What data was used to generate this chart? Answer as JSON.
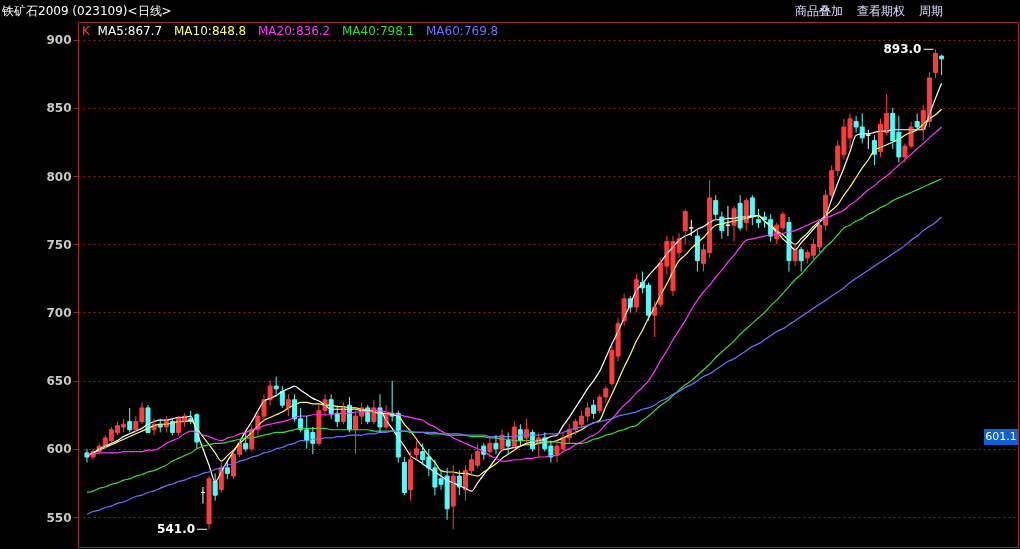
{
  "chart_data": {
    "type": "candlestick",
    "title": "铁矿石2009 (023109)<日线>",
    "categories": [
      null,
      null,
      null,
      null,
      null,
      null,
      null,
      null,
      null,
      null,
      null,
      null,
      null,
      null,
      null,
      null,
      null,
      null,
      null,
      null,
      null,
      null,
      null,
      null,
      null,
      null,
      null,
      null,
      null,
      null,
      null,
      null,
      null,
      null,
      null,
      null,
      null,
      null,
      null,
      null,
      null,
      null,
      null,
      null,
      null,
      null,
      null,
      null,
      null,
      null,
      null,
      null,
      null,
      null,
      null,
      null,
      null,
      null,
      null,
      null,
      null,
      null,
      null,
      null,
      null,
      null,
      null,
      null,
      null,
      null,
      null,
      null,
      null,
      null,
      null,
      null,
      null,
      null,
      null,
      null,
      null,
      null,
      null,
      null,
      null,
      null,
      null,
      null,
      null,
      null,
      null,
      null,
      null,
      null,
      null,
      null,
      null,
      null,
      null,
      null,
      null,
      null,
      null,
      null,
      null,
      null,
      null,
      null,
      null,
      null,
      null,
      null,
      null,
      null,
      null,
      null,
      null,
      null,
      null,
      null,
      null,
      null,
      null,
      null,
      null,
      null,
      null,
      null,
      null,
      null,
      null,
      null,
      null,
      null,
      null,
      null,
      null,
      null,
      null,
      null,
      null
    ],
    "ylim": [
      528,
      913
    ],
    "yticks": [
      550,
      600,
      650,
      700,
      750,
      800,
      850,
      900
    ],
    "grid": "y",
    "legend": "top left",
    "series": [
      {
        "name": "MA5:867.7",
        "type": "line",
        "color": "#ffffff",
        "values": [
          595,
          597,
          600,
          602,
          604,
          606,
          609,
          611,
          613,
          615,
          618,
          620,
          621,
          621,
          622,
          623,
          623,
          624,
          612,
          600,
          588,
          576,
          583,
          591,
          598,
          605,
          613,
          620,
          628,
          635,
          637,
          639,
          642,
          644,
          646,
          643,
          640,
          637,
          635,
          632,
          629,
          629,
          629,
          629,
          629,
          628,
          628,
          628,
          628,
          621,
          615,
          608,
          602,
          595,
          592,
          589,
          586,
          583,
          580,
          577,
          575,
          573,
          571,
          569,
          575,
          581,
          587,
          593,
          599,
          600,
          601,
          602,
          604,
          605,
          606,
          607,
          609,
          610,
          617,
          623,
          630,
          637,
          644,
          650,
          657,
          667,
          677,
          686,
          696,
          706,
          716,
          721,
          727,
          732,
          737,
          743,
          748,
          753,
          756,
          758,
          761,
          763,
          766,
          768,
          768,
          769,
          769,
          770,
          770,
          771,
          771,
          767,
          763,
          759,
          754,
          750,
          746,
          751,
          756,
          761,
          766,
          771,
          783,
          795,
          806,
          818,
          830,
          831,
          831,
          832,
          833,
          833,
          834,
          834,
          834,
          834,
          834,
          834,
          845,
          857,
          868
        ]
      },
      {
        "name": "MA10:848.8",
        "type": "line",
        "color": "#ffff66",
        "values": [
          595,
          597,
          599,
          601,
          603,
          605,
          607,
          609,
          611,
          613,
          615,
          617,
          618,
          618,
          619,
          620,
          620,
          621,
          615,
          609,
          603,
          597,
          591,
          595,
          599,
          604,
          608,
          612,
          617,
          621,
          623,
          625,
          627,
          630,
          632,
          634,
          634,
          633,
          633,
          632,
          632,
          631,
          631,
          630,
          630,
          629,
          628,
          627,
          626,
          626,
          625,
          624,
          618,
          613,
          607,
          601,
          595,
          590,
          584,
          583,
          583,
          582,
          582,
          581,
          580,
          583,
          586,
          589,
          593,
          596,
          599,
          602,
          603,
          603,
          604,
          605,
          605,
          606,
          608,
          610,
          612,
          614,
          617,
          619,
          621,
          631,
          640,
          650,
          660,
          669,
          679,
          687,
          696,
          704,
          713,
          721,
          730,
          738,
          742,
          747,
          751,
          755,
          760,
          764,
          765,
          766,
          767,
          768,
          769,
          770,
          771,
          767,
          764,
          760,
          757,
          753,
          750,
          754,
          758,
          763,
          767,
          771,
          775,
          779,
          786,
          792,
          799,
          806,
          812,
          819,
          821,
          823,
          825,
          827,
          830,
          832,
          834,
          838,
          842,
          845,
          849
        ]
      },
      {
        "name": "MA20:836.2",
        "type": "line",
        "color": "#ff33ff",
        "values": [
          596,
          596,
          597,
          597,
          597,
          597,
          598,
          598,
          598,
          598,
          599,
          599,
          601,
          604,
          606,
          608,
          611,
          613,
          612,
          610,
          609,
          607,
          606,
          608,
          609,
          611,
          612,
          614,
          615,
          617,
          618,
          619,
          620,
          621,
          623,
          624,
          624,
          625,
          625,
          625,
          625,
          626,
          626,
          626,
          627,
          627,
          627,
          628,
          628,
          627,
          626,
          625,
          624,
          623,
          622,
          621,
          618,
          616,
          613,
          611,
          608,
          606,
          604,
          602,
          600,
          598,
          595,
          593,
          591,
          591,
          592,
          592,
          593,
          593,
          594,
          594,
          595,
          595,
          598,
          600,
          603,
          605,
          608,
          610,
          613,
          618,
          622,
          627,
          632,
          636,
          641,
          645,
          650,
          657,
          665,
          672,
          680,
          687,
          694,
          702,
          709,
          715,
          720,
          726,
          731,
          737,
          742,
          748,
          753,
          754,
          755,
          756,
          757,
          757,
          758,
          759,
          760,
          762,
          764,
          766,
          768,
          769,
          771,
          773,
          775,
          779,
          782,
          786,
          790,
          793,
          797,
          800,
          804,
          808,
          812,
          816,
          820,
          824,
          828,
          832,
          836
        ]
      },
      {
        "name": "MA40:798.1",
        "type": "line",
        "color": "#33dd33",
        "values": [
          568,
          569,
          571,
          572,
          574,
          575,
          577,
          578,
          580,
          581,
          583,
          584,
          586,
          588,
          591,
          593,
          595,
          597,
          600,
          602,
          603,
          604,
          604,
          605,
          606,
          607,
          608,
          608,
          609,
          610,
          611,
          612,
          612,
          613,
          614,
          615,
          615,
          615,
          615,
          615,
          614,
          614,
          614,
          614,
          614,
          614,
          614,
          613,
          613,
          613,
          613,
          613,
          613,
          612,
          612,
          612,
          611,
          611,
          611,
          610,
          610,
          610,
          610,
          609,
          609,
          609,
          608,
          608,
          607,
          607,
          606,
          606,
          606,
          606,
          605,
          605,
          605,
          605,
          604,
          604,
          604,
          604,
          605,
          607,
          608,
          610,
          611,
          613,
          614,
          616,
          617,
          621,
          624,
          628,
          632,
          635,
          639,
          643,
          647,
          650,
          654,
          658,
          662,
          667,
          671,
          675,
          679,
          684,
          688,
          692,
          696,
          700,
          705,
          709,
          714,
          719,
          724,
          728,
          733,
          738,
          743,
          748,
          752,
          757,
          762,
          764,
          767,
          769,
          772,
          774,
          777,
          779,
          782,
          784,
          786,
          788,
          790,
          792,
          794,
          796,
          798
        ]
      },
      {
        "name": "MA60:769.8",
        "type": "line",
        "color": "#7070ff",
        "values": [
          552,
          554,
          555,
          557,
          558,
          560,
          561,
          563,
          565,
          566,
          568,
          569,
          571,
          573,
          574,
          576,
          577,
          579,
          580,
          582,
          583,
          585,
          586,
          588,
          589,
          591,
          592,
          594,
          595,
          597,
          598,
          600,
          601,
          603,
          604,
          606,
          606,
          607,
          607,
          608,
          608,
          609,
          609,
          610,
          610,
          610,
          611,
          611,
          612,
          612,
          613,
          613,
          613,
          613,
          612,
          612,
          612,
          612,
          611,
          611,
          611,
          611,
          610,
          610,
          610,
          610,
          609,
          609,
          609,
          609,
          609,
          610,
          610,
          610,
          610,
          611,
          611,
          611,
          612,
          614,
          615,
          616,
          617,
          619,
          620,
          621,
          622,
          624,
          625,
          626,
          627,
          629,
          630,
          632,
          635,
          637,
          640,
          642,
          645,
          647,
          650,
          653,
          655,
          658,
          661,
          664,
          666,
          669,
          672,
          675,
          677,
          680,
          683,
          686,
          688,
          691,
          694,
          697,
          700,
          703,
          706,
          709,
          712,
          715,
          718,
          722,
          725,
          728,
          731,
          734,
          737,
          740,
          743,
          746,
          749,
          753,
          756,
          760,
          763,
          766,
          770
        ]
      },
      {
        "name": "K",
        "color": "#ff3c3c",
        "ohlc": [
          [
            597,
            600,
            590,
            594
          ],
          [
            594,
            600,
            592,
            598
          ],
          [
            598,
            604,
            596,
            602
          ],
          [
            602,
            610,
            600,
            608
          ],
          [
            606,
            616,
            604,
            614
          ],
          [
            612,
            620,
            610,
            617
          ],
          [
            616,
            622,
            612,
            618
          ],
          [
            620,
            630,
            612,
            614
          ],
          [
            614,
            624,
            612,
            620
          ],
          [
            620,
            634,
            618,
            630
          ],
          [
            630,
            632,
            612,
            612
          ],
          [
            614,
            622,
            610,
            618
          ],
          [
            618,
            622,
            612,
            616
          ],
          [
            616,
            624,
            612,
            620
          ],
          [
            620,
            622,
            610,
            612
          ],
          [
            612,
            624,
            610,
            622
          ],
          [
            620,
            626,
            616,
            624
          ],
          [
            622,
            628,
            618,
            620
          ],
          [
            625,
            626,
            600,
            605
          ],
          [
            568,
            572,
            560,
            568
          ],
          [
            545,
            580,
            541,
            578
          ],
          [
            576,
            582,
            562,
            566
          ],
          [
            570,
            590,
            568,
            586
          ],
          [
            586,
            590,
            578,
            582
          ],
          [
            580,
            598,
            578,
            596
          ],
          [
            596,
            606,
            594,
            604
          ],
          [
            604,
            612,
            598,
            600
          ],
          [
            600,
            618,
            598,
            614
          ],
          [
            614,
            628,
            610,
            624
          ],
          [
            624,
            640,
            620,
            636
          ],
          [
            636,
            650,
            632,
            646
          ],
          [
            646,
            653,
            640,
            644
          ],
          [
            642,
            646,
            630,
            632
          ],
          [
            630,
            640,
            624,
            636
          ],
          [
            636,
            640,
            620,
            622
          ],
          [
            622,
            630,
            612,
            614
          ],
          [
            614,
            624,
            600,
            606
          ],
          [
            612,
            616,
            596,
            604
          ],
          [
            604,
            632,
            602,
            628
          ],
          [
            628,
            640,
            624,
            636
          ],
          [
            636,
            640,
            622,
            626
          ],
          [
            626,
            632,
            616,
            620
          ],
          [
            620,
            634,
            618,
            630
          ],
          [
            632,
            638,
            612,
            614
          ],
          [
            614,
            628,
            596,
            624
          ],
          [
            624,
            634,
            618,
            630
          ],
          [
            630,
            632,
            618,
            620
          ],
          [
            620,
            636,
            618,
            630
          ],
          [
            630,
            640,
            612,
            616
          ],
          [
            616,
            632,
            614,
            626
          ],
          [
            626,
            650,
            620,
            624
          ],
          [
            626,
            628,
            590,
            594
          ],
          [
            590,
            594,
            566,
            568
          ],
          [
            570,
            598,
            562,
            592
          ],
          [
            596,
            606,
            592,
            600
          ],
          [
            598,
            604,
            588,
            592
          ],
          [
            594,
            600,
            580,
            586
          ],
          [
            586,
            592,
            566,
            572
          ],
          [
            578,
            584,
            570,
            574
          ],
          [
            580,
            586,
            548,
            556
          ],
          [
            558,
            588,
            541,
            580
          ],
          [
            580,
            584,
            566,
            572
          ],
          [
            570,
            588,
            562,
            584
          ],
          [
            584,
            596,
            580,
            592
          ],
          [
            588,
            604,
            586,
            598
          ],
          [
            602,
            604,
            592,
            596
          ],
          [
            598,
            608,
            594,
            604
          ],
          [
            604,
            610,
            596,
            600
          ],
          [
            600,
            614,
            598,
            610
          ],
          [
            606,
            612,
            596,
            602
          ],
          [
            602,
            620,
            598,
            616
          ],
          [
            614,
            618,
            602,
            606
          ],
          [
            608,
            622,
            604,
            614
          ],
          [
            612,
            614,
            598,
            600
          ],
          [
            604,
            612,
            594,
            608
          ],
          [
            608,
            612,
            598,
            600
          ],
          [
            602,
            606,
            590,
            594
          ],
          [
            596,
            606,
            590,
            602
          ],
          [
            600,
            612,
            598,
            608
          ],
          [
            608,
            618,
            604,
            614
          ],
          [
            614,
            622,
            610,
            620
          ],
          [
            618,
            628,
            614,
            624
          ],
          [
            624,
            634,
            620,
            630
          ],
          [
            632,
            636,
            622,
            626
          ],
          [
            628,
            640,
            626,
            638
          ],
          [
            638,
            646,
            634,
            644
          ],
          [
            648,
            676,
            646,
            672
          ],
          [
            668,
            696,
            664,
            692
          ],
          [
            694,
            714,
            690,
            710
          ],
          [
            710,
            712,
            700,
            704
          ],
          [
            704,
            728,
            700,
            724
          ],
          [
            722,
            730,
            714,
            718
          ],
          [
            720,
            722,
            694,
            698
          ],
          [
            698,
            708,
            682,
            704
          ],
          [
            706,
            740,
            704,
            736
          ],
          [
            734,
            756,
            728,
            752
          ],
          [
            716,
            756,
            712,
            752
          ],
          [
            744,
            758,
            740,
            754
          ],
          [
            760,
            776,
            750,
            774
          ],
          [
            762,
            768,
            756,
            762
          ],
          [
            756,
            760,
            730,
            738
          ],
          [
            736,
            750,
            730,
            746
          ],
          [
            744,
            797,
            740,
            784
          ],
          [
            782,
            786,
            768,
            772
          ],
          [
            770,
            774,
            754,
            760
          ],
          [
            764,
            778,
            756,
            764
          ],
          [
            764,
            778,
            752,
            776
          ],
          [
            780,
            786,
            760,
            762
          ],
          [
            766,
            784,
            760,
            782
          ],
          [
            784,
            786,
            764,
            770
          ],
          [
            768,
            776,
            762,
            766
          ],
          [
            770,
            774,
            762,
            768
          ],
          [
            768,
            772,
            752,
            756
          ],
          [
            754,
            766,
            750,
            764
          ],
          [
            762,
            774,
            760,
            772
          ],
          [
            766,
            770,
            730,
            738
          ],
          [
            738,
            750,
            734,
            746
          ],
          [
            746,
            748,
            730,
            738
          ],
          [
            740,
            746,
            736,
            744
          ],
          [
            742,
            754,
            738,
            750
          ],
          [
            748,
            768,
            744,
            764
          ],
          [
            764,
            790,
            760,
            786
          ],
          [
            786,
            808,
            784,
            804
          ],
          [
            804,
            826,
            800,
            822
          ],
          [
            816,
            842,
            812,
            836
          ],
          [
            828,
            846,
            820,
            842
          ],
          [
            840,
            844,
            832,
            836
          ],
          [
            836,
            846,
            824,
            828
          ],
          [
            830,
            834,
            820,
            830
          ],
          [
            826,
            830,
            808,
            816
          ],
          [
            818,
            842,
            814,
            838
          ],
          [
            832,
            860,
            830,
            846
          ],
          [
            846,
            850,
            820,
            826
          ],
          [
            832,
            844,
            810,
            814
          ],
          [
            814,
            824,
            810,
            822
          ],
          [
            822,
            840,
            820,
            836
          ],
          [
            840,
            846,
            834,
            836
          ],
          [
            834,
            852,
            826,
            848
          ],
          [
            840,
            876,
            836,
            872
          ],
          [
            876,
            893,
            872,
            890
          ],
          [
            888,
            889,
            874,
            886
          ]
        ],
        "colors": [
          "#54fcfc",
          "#ff3c3c",
          "#ff3c3c",
          "#ff3c3c",
          "#ff3c3c",
          "#ff3c3c",
          "#ff3c3c",
          "#54fcfc",
          "#ff3c3c",
          "#ff3c3c",
          "#54fcfc",
          "#ff3c3c",
          "#54fcfc",
          "#ff3c3c",
          "#54fcfc",
          "#ff3c3c",
          "#ff3c3c",
          "#54fcfc",
          "#54fcfc",
          "#ffffff",
          "#ff3c3c",
          "#54fcfc",
          "#ff3c3c",
          "#54fcfc",
          "#ff3c3c",
          "#ff3c3c",
          "#54fcfc",
          "#ff3c3c",
          "#ff3c3c",
          "#ff3c3c",
          "#ff3c3c",
          "#54fcfc",
          "#54fcfc",
          "#ff3c3c",
          "#54fcfc",
          "#54fcfc",
          "#54fcfc",
          "#54fcfc",
          "#ff3c3c",
          "#ff3c3c",
          "#54fcfc",
          "#54fcfc",
          "#ff3c3c",
          "#54fcfc",
          "#ff3c3c",
          "#ff3c3c",
          "#54fcfc",
          "#ff3c3c",
          "#54fcfc",
          "#ff3c3c",
          "#54fcfc",
          "#54fcfc",
          "#54fcfc",
          "#ff3c3c",
          "#ff3c3c",
          "#54fcfc",
          "#54fcfc",
          "#54fcfc",
          "#54fcfc",
          "#54fcfc",
          "#ff3c3c",
          "#54fcfc",
          "#ff3c3c",
          "#ff3c3c",
          "#ff3c3c",
          "#54fcfc",
          "#ff3c3c",
          "#54fcfc",
          "#ff3c3c",
          "#54fcfc",
          "#ff3c3c",
          "#54fcfc",
          "#ff3c3c",
          "#54fcfc",
          "#ff3c3c",
          "#54fcfc",
          "#54fcfc",
          "#ff3c3c",
          "#ff3c3c",
          "#ff3c3c",
          "#ff3c3c",
          "#ff3c3c",
          "#ff3c3c",
          "#54fcfc",
          "#ff3c3c",
          "#ff3c3c",
          "#ff3c3c",
          "#ff3c3c",
          "#ff3c3c",
          "#54fcfc",
          "#ff3c3c",
          "#54fcfc",
          "#54fcfc",
          "#ff3c3c",
          "#ff3c3c",
          "#ff3c3c",
          "#ff3c3c",
          "#ff3c3c",
          "#ff3c3c",
          "#ffffff",
          "#54fcfc",
          "#ff3c3c",
          "#ff3c3c",
          "#54fcfc",
          "#54fcfc",
          "#ffffff",
          "#ff3c3c",
          "#54fcfc",
          "#ff3c3c",
          "#54fcfc",
          "#54fcfc",
          "#54fcfc",
          "#54fcfc",
          "#ff3c3c",
          "#ff3c3c",
          "#54fcfc",
          "#ff3c3c",
          "#54fcfc",
          "#ff3c3c",
          "#ff3c3c",
          "#ff3c3c",
          "#ff3c3c",
          "#ff3c3c",
          "#ff3c3c",
          "#ff3c3c",
          "#ff3c3c",
          "#54fcfc",
          "#54fcfc",
          "#ffffff",
          "#54fcfc",
          "#ff3c3c",
          "#ff3c3c",
          "#54fcfc",
          "#54fcfc",
          "#ff3c3c",
          "#ff3c3c",
          "#54fcfc",
          "#ff3c3c",
          "#ff3c3c",
          "#ff3c3c",
          "#54fcfc"
        ]
      }
    ],
    "annotations": [
      "893.0",
      "541.0",
      "601.1",
      "商品叠加",
      "查看期权",
      "周期"
    ]
  }
}
